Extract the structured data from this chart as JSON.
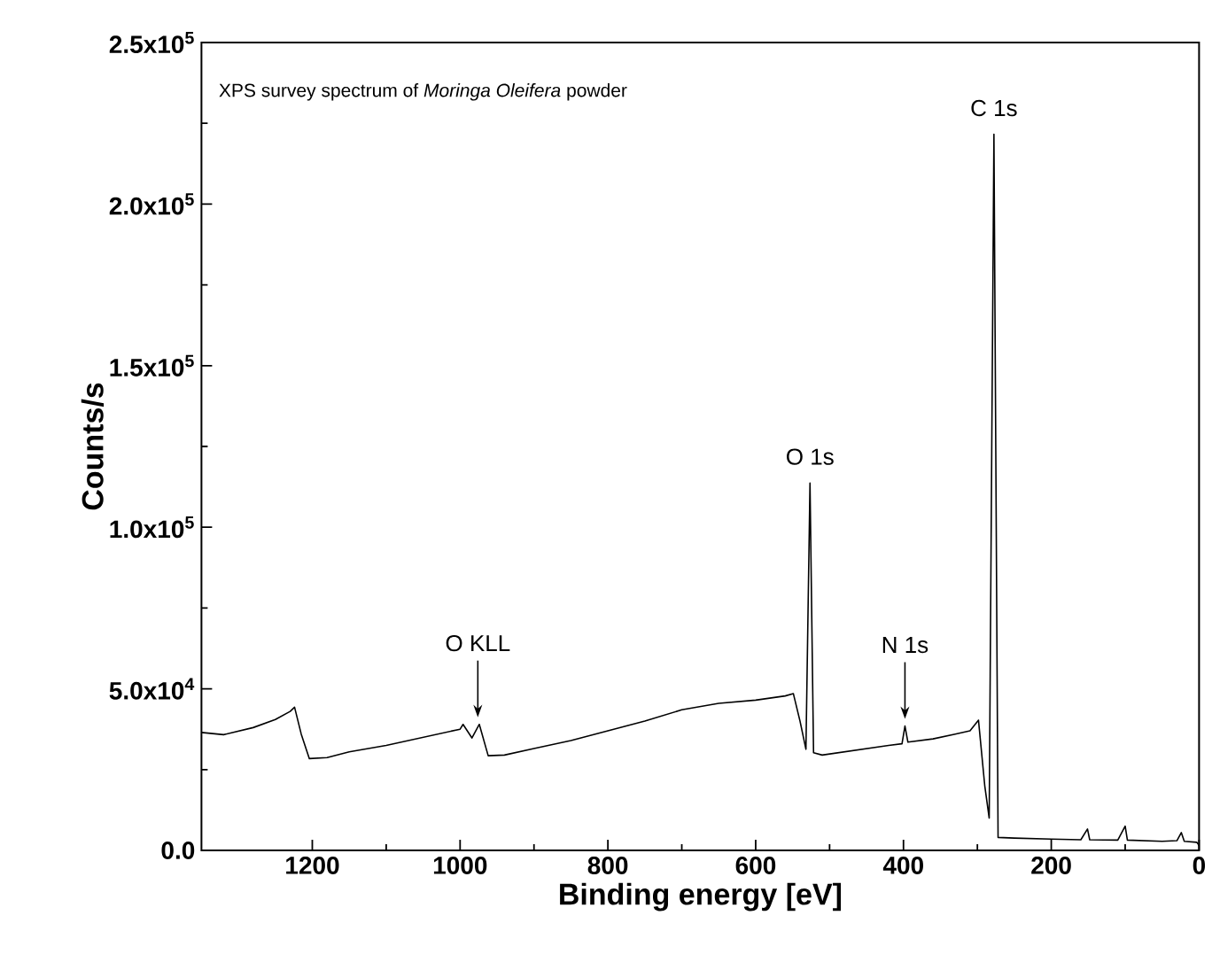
{
  "chart_data": {
    "type": "line",
    "xlabel": "Binding energy [eV]",
    "ylabel": "Counts/s",
    "xlim": [
      1350,
      0
    ],
    "xticks": [
      1200,
      1000,
      800,
      600,
      400,
      200,
      0
    ],
    "ylim": [
      0,
      250000
    ],
    "yticks": [
      {
        "value": 0,
        "label": "0.0"
      },
      {
        "value": 50000,
        "label": "5.0x10$^{4}$"
      },
      {
        "value": 100000,
        "label": "1.0x10$^{5}$"
      },
      {
        "value": 150000,
        "label": "1.5x10$^{5}$"
      },
      {
        "value": 200000,
        "label": "2.0x10$^{5}$"
      },
      {
        "value": 250000,
        "label": "2.5x10$^{5}$"
      }
    ],
    "annotations": [
      "XPS survey spectrum of *Moringa Oleifera* powder",
      {
        "text": "O KLL",
        "x": 976,
        "y": 39000
      },
      {
        "text": "O 1s",
        "x": 526.5,
        "y": 113700
      },
      {
        "text": "N 1s",
        "x": 398,
        "y": 38500
      },
      {
        "text": "C 1s",
        "x": 277.6,
        "y": 221600
      }
    ],
    "series": [
      {
        "color": "#000000",
        "x": [
          1350,
          1320,
          1280,
          1250,
          1230,
          1224,
          1215,
          1204,
          1180,
          1150,
          1100,
          1050,
          1000,
          996,
          984,
          974,
          962,
          940,
          900,
          850,
          800,
          750,
          700,
          650,
          600,
          560,
          549,
          540,
          532,
          526.5,
          521.7,
          510,
          480,
          450,
          420,
          402,
          398,
          394,
          360,
          330,
          310,
          298.5,
          290,
          284,
          277.6,
          272,
          250,
          200,
          160,
          151,
          148,
          110,
          100,
          97,
          50,
          30,
          24,
          20,
          3,
          0
        ],
        "values": [
          36500,
          35800,
          38000,
          40500,
          43000,
          44300,
          36000,
          28400,
          28700,
          30500,
          32500,
          35000,
          37500,
          39000,
          34800,
          39000,
          29300,
          29500,
          31500,
          34000,
          37000,
          40000,
          43500,
          45500,
          46500,
          47800,
          48500,
          40000,
          31300,
          113700,
          30200,
          29500,
          30500,
          31500,
          32500,
          33000,
          38500,
          33500,
          34500,
          36000,
          37000,
          40300,
          20000,
          10000,
          221600,
          4000,
          3800,
          3500,
          3300,
          6600,
          3300,
          3200,
          7500,
          3200,
          2800,
          3000,
          5500,
          2800,
          2500,
          1500
        ]
      }
    ]
  }
}
